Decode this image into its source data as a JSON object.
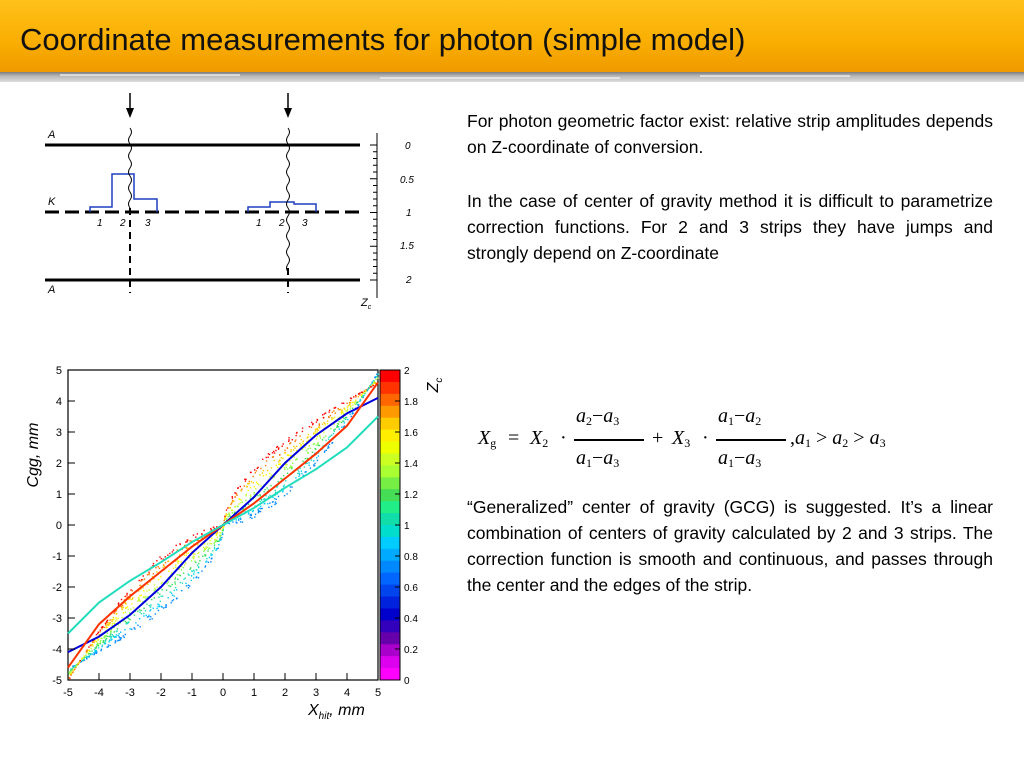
{
  "slide": {
    "title": "Coordinate measurements for photon (simple model)",
    "paragraph1": "For photon geometric factor exist: relative strip amplitudes depends on Z-coordinate of conversion.",
    "paragraph2": "In the case of center of gravity method it is difficult to parametrize correction functions. For 2 and 3 strips they have jumps and strongly depend on Z-coordinate",
    "paragraph3": "“Generalized” center of gravity (GCG) is suggested. It’s a linear combination of centers of gravity calculated by 2 and 3 strips. The correction function is smooth and continuous, and passes through the center and the edges of the strip."
  },
  "formula": {
    "lhs": "X",
    "lhs_sub": "g",
    "eq": "=",
    "x2": "X",
    "x2_sub": "2",
    "dot": "·",
    "plus": "+",
    "x3": "X",
    "x3_sub": "3",
    "frac1_num": [
      "a",
      "2",
      "−",
      "a",
      "3"
    ],
    "frac1_den": [
      "a",
      "1",
      "−",
      "a",
      "3"
    ],
    "frac2_num": [
      "a",
      "1",
      "−",
      "a",
      "2"
    ],
    "frac2_den": [
      "a",
      "1",
      "−",
      "a",
      "3"
    ],
    "condition": [
      ",",
      "a",
      "1",
      ">",
      "a",
      "2",
      ">",
      "a",
      "3"
    ]
  },
  "diagram": {
    "labels": {
      "top_plane": "A",
      "cathode": "K",
      "bottom_plane": "A",
      "axis": "Z",
      "axis_sub": "c"
    },
    "strip_labels_left": [
      "1",
      "2",
      "3"
    ],
    "strip_labels_right": [
      "1",
      "2",
      "3"
    ],
    "scale_ticks": [
      "0",
      "0.5",
      "1",
      "1.5",
      "2"
    ]
  },
  "chart_data": {
    "type": "scatter",
    "title": "",
    "xlabel": "X",
    "xlabel_sub": "hit",
    "xlabel_unit": ", mm",
    "ylabel": "Cgg, mm",
    "xlim": [
      -5,
      5
    ],
    "ylim": [
      -5,
      5
    ],
    "x_ticks": [
      "-5",
      "-4",
      "-3",
      "-2",
      "-1",
      "0",
      "1",
      "2",
      "3",
      "4",
      "5"
    ],
    "y_ticks": [
      "5",
      "4",
      "3",
      "2",
      "1",
      "0",
      "-1",
      "-2",
      "-3",
      "-4",
      "-5"
    ],
    "colorbar": {
      "label": "Z",
      "label_sub": "c",
      "range": [
        0,
        2
      ],
      "ticks": [
        "2",
        "1.8",
        "1.6",
        "1.4",
        "1.2",
        "1",
        "0.8",
        "0.6",
        "0.4",
        "0.2",
        "0"
      ],
      "colors": [
        "#ff0000",
        "#ff7700",
        "#ffcc00",
        "#ffff00",
        "#ccff33",
        "#88ff44",
        "#33dd55",
        "#22ddbb",
        "#00ccff",
        "#0088ff",
        "#0000dd",
        "#6600aa",
        "#ff00ff"
      ]
    },
    "series": [
      {
        "color": "#0000dd",
        "points": [
          [
            -5,
            -4.1
          ],
          [
            -4,
            -3.6
          ],
          [
            -3,
            -2.9
          ],
          [
            -2,
            -2.0
          ],
          [
            -1,
            -0.9
          ],
          [
            0,
            0
          ],
          [
            1,
            0.9
          ],
          [
            2,
            2.0
          ],
          [
            3,
            2.9
          ],
          [
            4,
            3.6
          ],
          [
            5,
            4.1
          ]
        ]
      },
      {
        "color": "#ff3300",
        "points": [
          [
            -5,
            -4.6
          ],
          [
            -4,
            -3.2
          ],
          [
            -3,
            -2.3
          ],
          [
            -2,
            -1.5
          ],
          [
            -1,
            -0.7
          ],
          [
            0,
            0
          ],
          [
            1,
            0.7
          ],
          [
            2,
            1.5
          ],
          [
            3,
            2.3
          ],
          [
            4,
            3.2
          ],
          [
            5,
            4.6
          ]
        ]
      },
      {
        "color": "#22ddbb",
        "points": [
          [
            -5,
            -3.5
          ],
          [
            -4,
            -2.5
          ],
          [
            -3,
            -1.8
          ],
          [
            -2,
            -1.2
          ],
          [
            -1,
            -0.55
          ],
          [
            0,
            0
          ],
          [
            1,
            0.55
          ],
          [
            2,
            1.2
          ],
          [
            3,
            1.8
          ],
          [
            4,
            2.5
          ],
          [
            5,
            3.5
          ]
        ]
      }
    ]
  }
}
